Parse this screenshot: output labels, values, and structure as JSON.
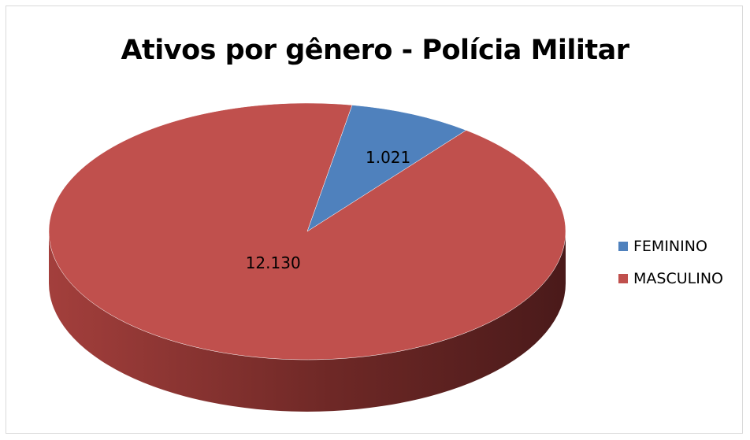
{
  "chart_data": {
    "type": "pie",
    "title": "Ativos por gênero - Polícia Militar",
    "style": "3d",
    "legend_position": "right",
    "slices": [
      {
        "label": "FEMININO",
        "value": 1021,
        "value_label": "1.021",
        "color": "#4f81bd",
        "dark_color": "#2e4b70"
      },
      {
        "label": "MASCULINO",
        "value": 12130,
        "value_label": "12.130",
        "color": "#c0504d",
        "dark_color": "#5a1e1e"
      }
    ]
  }
}
